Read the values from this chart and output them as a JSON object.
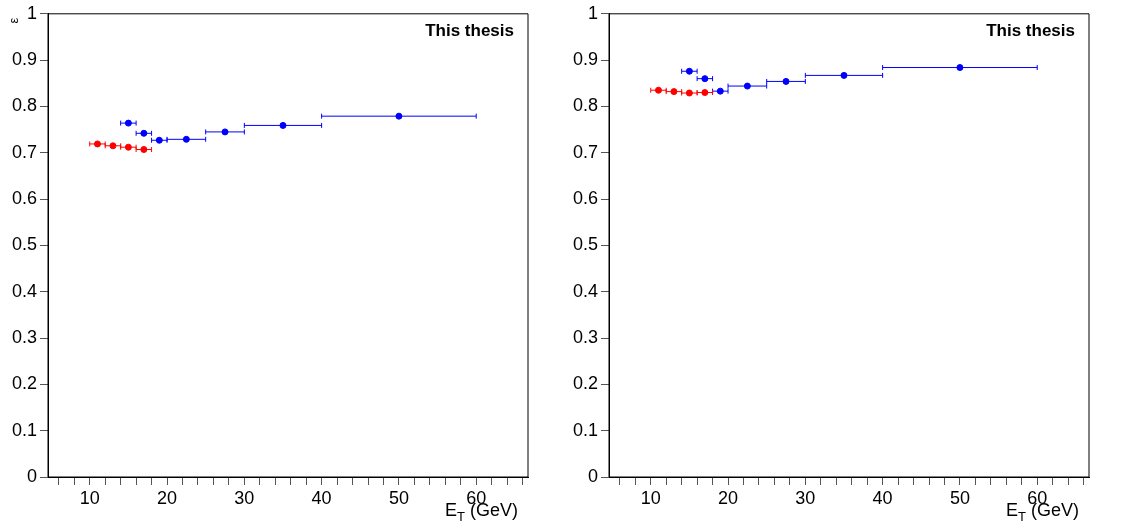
{
  "chart_data": [
    {
      "type": "scatter",
      "xlabel": "E$_{T}$ (GeV)",
      "ylabel": "ε",
      "annotations": [
        "This thesis"
      ],
      "marker": "circle",
      "legend": false,
      "grid": false,
      "xlim": [
        4.6,
        66.7
      ],
      "ylim": [
        0,
        1
      ],
      "xticks": [
        {
          "value": 6,
          "label": null
        },
        {
          "value": 8,
          "label": null
        },
        10,
        {
          "value": 12,
          "label": null
        },
        {
          "value": 14,
          "label": null
        },
        {
          "value": 16,
          "label": null
        },
        {
          "value": 18,
          "label": null
        },
        20,
        {
          "value": 22,
          "label": null
        },
        {
          "value": 24,
          "label": null
        },
        {
          "value": 26,
          "label": null
        },
        {
          "value": 28,
          "label": null
        },
        30,
        {
          "value": 32,
          "label": null
        },
        {
          "value": 34,
          "label": null
        },
        {
          "value": 36,
          "label": null
        },
        {
          "value": 38,
          "label": null
        },
        40,
        {
          "value": 42,
          "label": null
        },
        {
          "value": 44,
          "label": null
        },
        {
          "value": 46,
          "label": null
        },
        {
          "value": 48,
          "label": null
        },
        50,
        {
          "value": 52,
          "label": null
        },
        {
          "value": 54,
          "label": null
        },
        {
          "value": 56,
          "label": null
        },
        {
          "value": 58,
          "label": null
        },
        60,
        {
          "value": 62,
          "label": null
        },
        {
          "value": 64,
          "label": null
        },
        {
          "value": 66,
          "label": null
        }
      ],
      "yticks": [
        0,
        0.1,
        0.2,
        0.3,
        0.4,
        0.5,
        0.6,
        0.7,
        0.8,
        0.9,
        1
      ],
      "series": [
        {
          "color": "#0000ff",
          "x": [
            15,
            17,
            19,
            22.5,
            27.5,
            35,
            50
          ],
          "values": [
            0.764,
            0.742,
            0.727,
            0.729,
            0.745,
            0.759,
            0.779
          ],
          "xerrors": [
            1,
            1,
            1,
            2.5,
            2.5,
            5,
            10
          ]
        },
        {
          "color": "#ff0000",
          "x": [
            11,
            13,
            15,
            17
          ],
          "values": [
            0.719,
            0.715,
            0.712,
            0.707
          ],
          "xerrors": [
            1,
            1,
            1,
            1
          ]
        }
      ]
    },
    {
      "type": "scatter",
      "xlabel": "E$_{T}$ (GeV)",
      "annotations": [
        "This thesis"
      ],
      "marker": "circle",
      "legend": false,
      "grid": false,
      "xlim": [
        4.6,
        66.7
      ],
      "ylim": [
        0,
        1
      ],
      "xticks": [
        {
          "value": 6,
          "label": null
        },
        {
          "value": 8,
          "label": null
        },
        10,
        {
          "value": 12,
          "label": null
        },
        {
          "value": 14,
          "label": null
        },
        {
          "value": 16,
          "label": null
        },
        {
          "value": 18,
          "label": null
        },
        20,
        {
          "value": 22,
          "label": null
        },
        {
          "value": 24,
          "label": null
        },
        {
          "value": 26,
          "label": null
        },
        {
          "value": 28,
          "label": null
        },
        30,
        {
          "value": 32,
          "label": null
        },
        {
          "value": 34,
          "label": null
        },
        {
          "value": 36,
          "label": null
        },
        {
          "value": 38,
          "label": null
        },
        40,
        {
          "value": 42,
          "label": null
        },
        {
          "value": 44,
          "label": null
        },
        {
          "value": 46,
          "label": null
        },
        {
          "value": 48,
          "label": null
        },
        50,
        {
          "value": 52,
          "label": null
        },
        {
          "value": 54,
          "label": null
        },
        {
          "value": 56,
          "label": null
        },
        {
          "value": 58,
          "label": null
        },
        60,
        {
          "value": 62,
          "label": null
        },
        {
          "value": 64,
          "label": null
        },
        {
          "value": 66,
          "label": null
        }
      ],
      "yticks": [
        0,
        0.1,
        0.2,
        0.3,
        0.4,
        0.5,
        0.6,
        0.7,
        0.8,
        0.9,
        1
      ],
      "series": [
        {
          "color": "#0000ff",
          "x": [
            15,
            17,
            19,
            22.5,
            27.5,
            35,
            50
          ],
          "values": [
            0.876,
            0.86,
            0.833,
            0.844,
            0.854,
            0.867,
            0.884
          ],
          "xerrors": [
            1,
            1,
            1,
            2.5,
            2.5,
            5,
            10
          ]
        },
        {
          "color": "#ff0000",
          "x": [
            11,
            13,
            15,
            17
          ],
          "values": [
            0.835,
            0.832,
            0.829,
            0.83
          ],
          "xerrors": [
            1,
            1,
            1,
            1
          ]
        }
      ]
    }
  ]
}
